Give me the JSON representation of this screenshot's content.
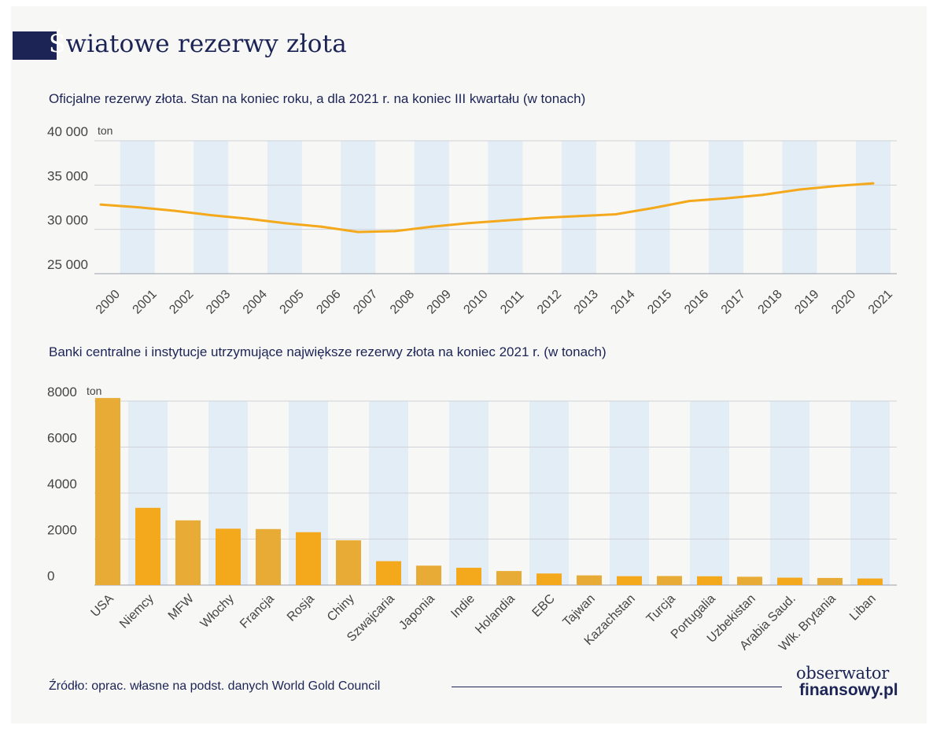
{
  "header": {
    "first_letter": "Ś",
    "title_rest": "wiatowe rezerwy złota"
  },
  "footer": {
    "source": "Źródło: oprac. własne na podst. danych World Gold Council",
    "brand_top": "obserwator",
    "brand_bottom": "finansowy.pl"
  },
  "colors": {
    "navy": "#1c2456",
    "gold": "#f4a91c",
    "gold_alt": "#e8ac36",
    "band": "#e3edf6",
    "grid": "#cfd2d8"
  },
  "chart_data": [
    {
      "type": "line",
      "title": "Oficjalne rezerwy złota. Stan na koniec roku, a dla 2021 r. na koniec III kwartału (w tonach)",
      "y_unit": "ton",
      "ylim": [
        25000,
        40000
      ],
      "yticks": [
        25000,
        30000,
        35000,
        40000
      ],
      "ytick_labels": [
        "25 000",
        "30 000",
        "35 000",
        "40 000"
      ],
      "x": [
        "2000",
        "2001",
        "2002",
        "2003",
        "2004",
        "2005",
        "2006",
        "2007",
        "2008",
        "2009",
        "2010",
        "2011",
        "2012",
        "2013",
        "2014",
        "2015",
        "2016",
        "2017",
        "2018",
        "2019",
        "2020",
        "2021"
      ],
      "series": [
        {
          "values": [
            32800,
            32500,
            32100,
            31600,
            31200,
            30700,
            30300,
            29700,
            29800,
            30300,
            30700,
            31000,
            31300,
            31500,
            31700,
            32400,
            33200,
            33500,
            33900,
            34500,
            34900,
            35200
          ]
        }
      ],
      "grid": true
    },
    {
      "type": "bar",
      "title": "Banki centralne i instytucje utrzymujące największe rezerwy złota na koniec 2021 r. (w tonach)",
      "y_unit": "ton",
      "ylim": [
        0,
        8000
      ],
      "yticks": [
        0,
        2000,
        4000,
        6000,
        8000
      ],
      "ytick_labels": [
        "0",
        "2000",
        "4000",
        "6000",
        "8000"
      ],
      "categories": [
        "USA",
        "Niemcy",
        "MFW",
        "Włochy",
        "Francja",
        "Rosja",
        "Chiny",
        "Szwajcaria",
        "Japonia",
        "Indie",
        "Holandia",
        "EBC",
        "Tajwan",
        "Kazachstan",
        "Turcja",
        "Portugalia",
        "Uzbekistan",
        "Arabia Saud.",
        "Wlk. Brytania",
        "Liban"
      ],
      "values": [
        8133,
        3359,
        2814,
        2452,
        2436,
        2300,
        1948,
        1040,
        846,
        754,
        612,
        505,
        423,
        387,
        394,
        383,
        363,
        323,
        310,
        287
      ],
      "grid": true
    }
  ]
}
